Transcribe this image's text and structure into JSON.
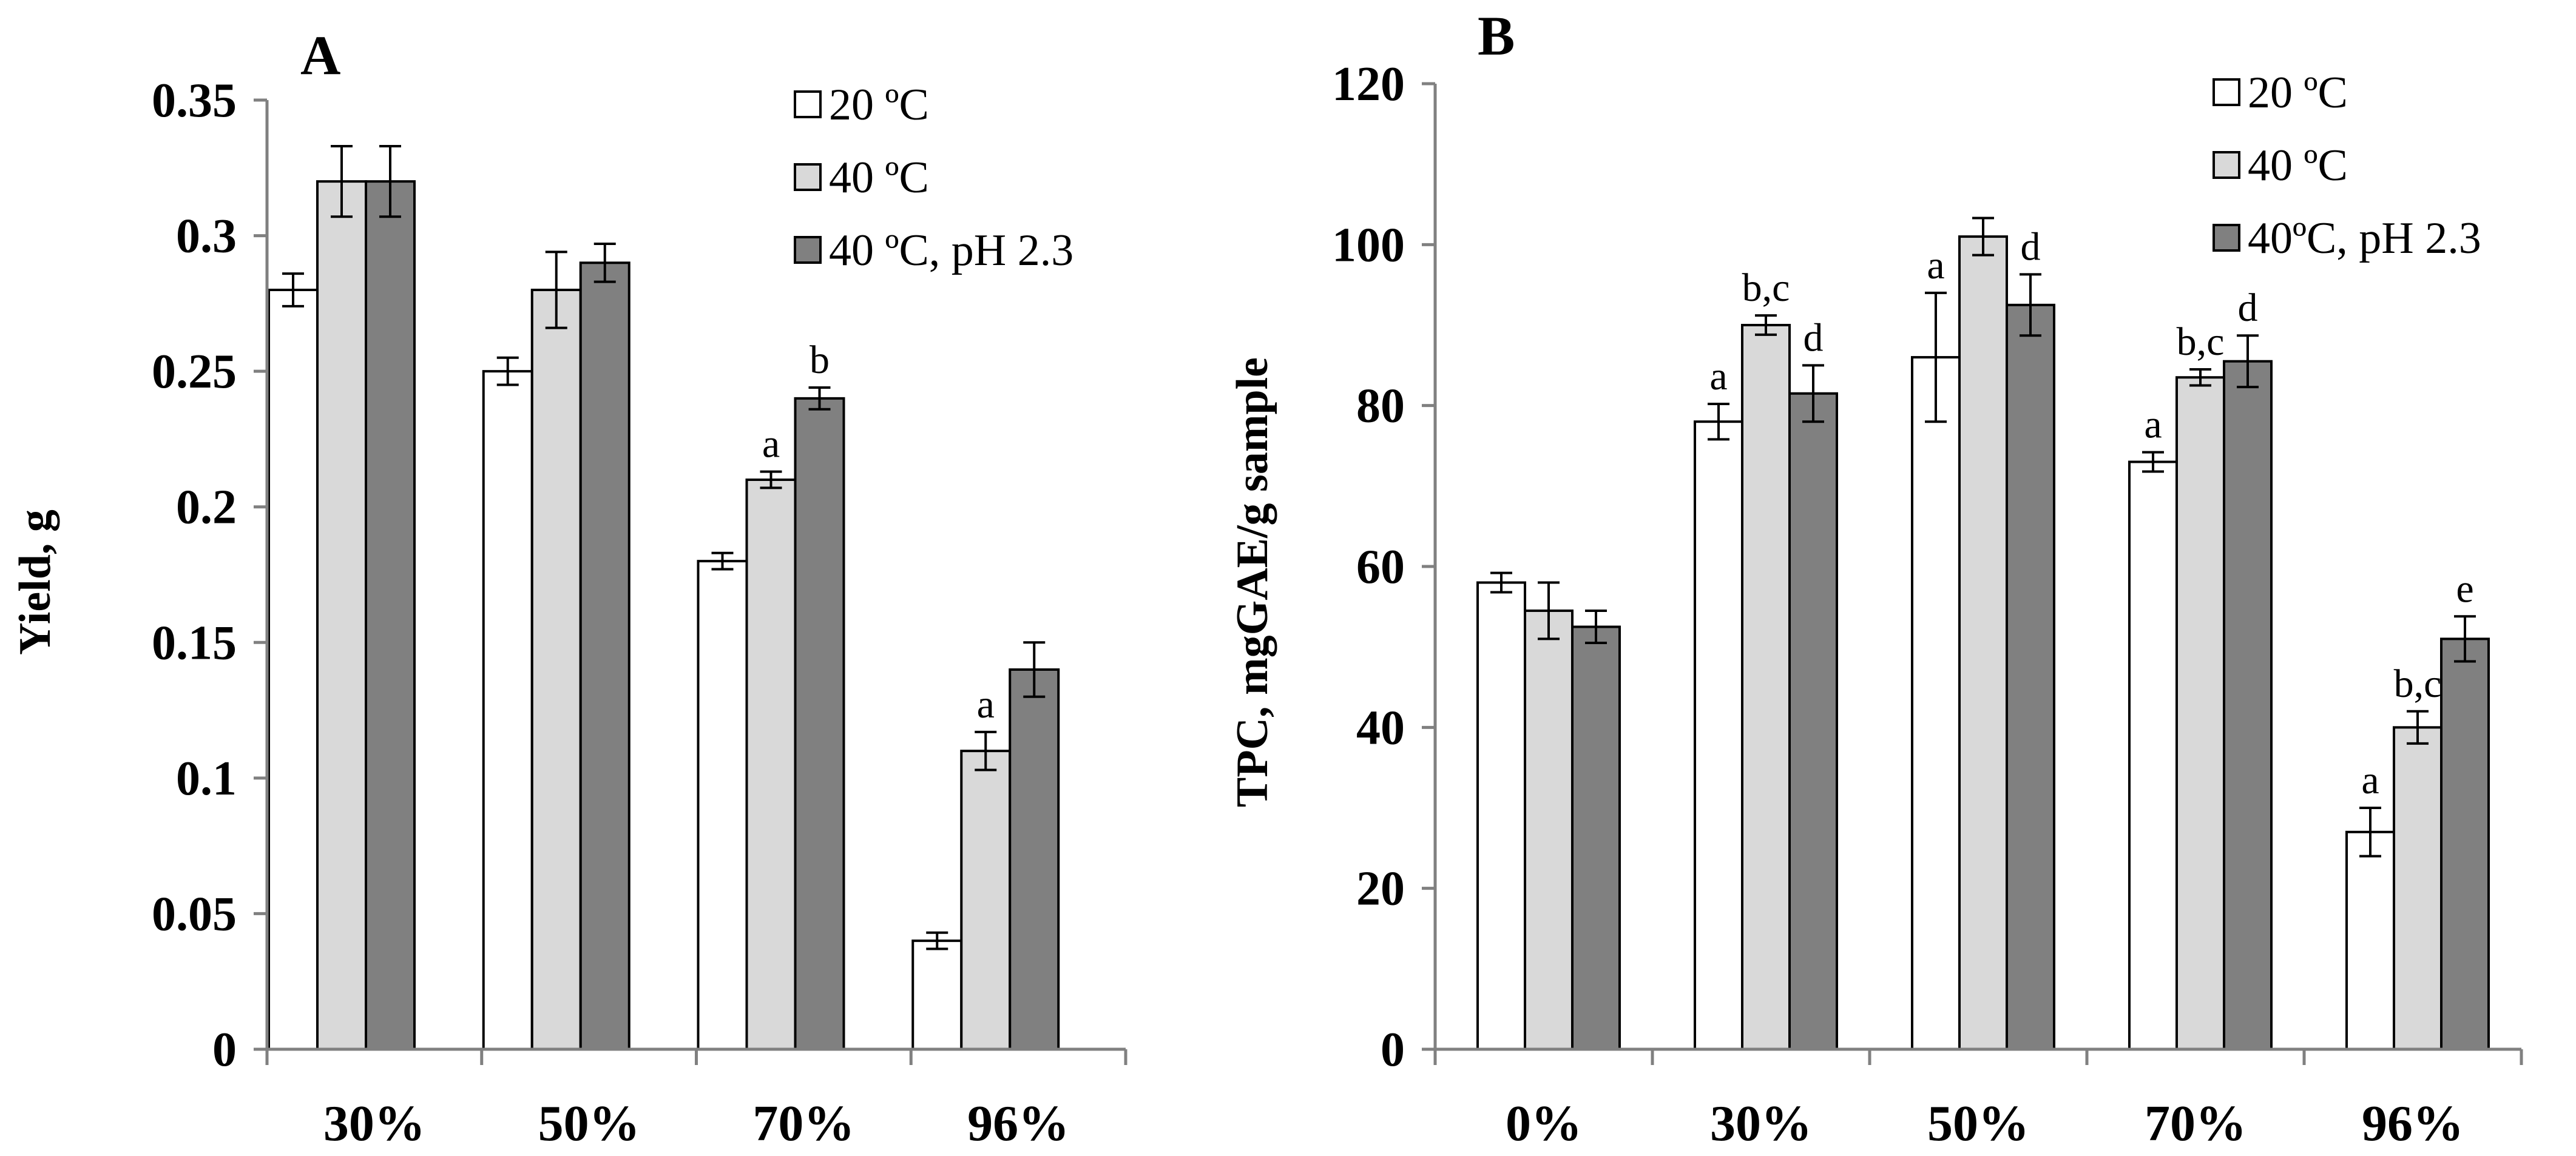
{
  "chart_data": [
    {
      "type": "bar",
      "panel_label": "A",
      "ylabel": "Yield, g",
      "xlabel": "",
      "ylim": [
        0,
        0.35
      ],
      "yticks": [
        0,
        0.05,
        0.1,
        0.15,
        0.2,
        0.25,
        0.3,
        0.35
      ],
      "ytick_labels": [
        "0",
        "0.05",
        "0.1",
        "0.15",
        "0.2",
        "0.25",
        "0.3",
        "0.35"
      ],
      "categories": [
        "30%",
        "50%",
        "70%",
        "96%"
      ],
      "legend_position": "top-right",
      "series": [
        {
          "name": "20 ºC",
          "color": "#ffffff",
          "values": [
            0.28,
            0.25,
            0.18,
            0.04
          ],
          "errors": [
            0.006,
            0.005,
            0.003,
            0.003
          ],
          "labels": [
            "",
            "",
            "",
            ""
          ]
        },
        {
          "name": "40 ºC",
          "color": "#d9d9d9",
          "values": [
            0.32,
            0.28,
            0.21,
            0.11
          ],
          "errors": [
            0.013,
            0.014,
            0.003,
            0.007
          ],
          "labels": [
            "",
            "",
            "a",
            "a"
          ]
        },
        {
          "name": "40 ºC, pH 2.3",
          "color": "#808080",
          "values": [
            0.32,
            0.29,
            0.24,
            0.14
          ],
          "errors": [
            0.013,
            0.007,
            0.004,
            0.01
          ],
          "labels": [
            "",
            "",
            "b",
            ""
          ]
        }
      ]
    },
    {
      "type": "bar",
      "panel_label": "B",
      "ylabel": "TPC, mgGAE/g sample",
      "xlabel": "",
      "ylim": [
        0,
        120
      ],
      "yticks": [
        0,
        20,
        40,
        60,
        80,
        100,
        120
      ],
      "ytick_labels": [
        "0",
        "20",
        "40",
        "60",
        "80",
        "100",
        "120"
      ],
      "categories": [
        "0%",
        "30%",
        "50%",
        "70%",
        "96%"
      ],
      "legend_position": "top-right",
      "series": [
        {
          "name": "20 ºC",
          "color": "#ffffff",
          "values": [
            58,
            78,
            86,
            73,
            27
          ],
          "errors": [
            1.2,
            2.2,
            8,
            1.2,
            3
          ],
          "labels": [
            "",
            "a",
            "a",
            "a",
            "a"
          ]
        },
        {
          "name": "40 ºC",
          "color": "#d9d9d9",
          "values": [
            54.5,
            90,
            101,
            83.5,
            40
          ],
          "errors": [
            3.5,
            1.2,
            2.3,
            1,
            2
          ],
          "labels": [
            "",
            "b,c",
            "",
            "b,c",
            "b,c"
          ]
        },
        {
          "name": "40ºC, pH 2.3",
          "color": "#808080",
          "values": [
            52.5,
            81.5,
            92.5,
            85.5,
            51
          ],
          "errors": [
            2,
            3.5,
            3.8,
            3.2,
            2.8
          ],
          "labels": [
            "",
            "d",
            "d",
            "d",
            "e"
          ]
        }
      ]
    }
  ]
}
